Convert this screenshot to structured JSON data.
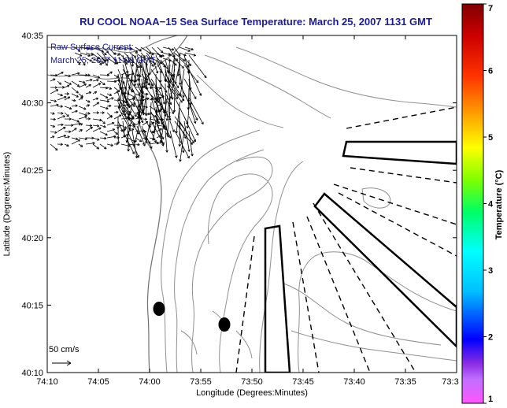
{
  "title": "RU COOL  NOAA−15  Sea Surface Temperature:  March 25, 2007 1131 GMT",
  "annotation": {
    "line1": "Raw Surface Current:",
    "line2": "March 25, 2007 11:00 GMT"
  },
  "axes": {
    "xlabel": "Longitude (Degrees:Minutes)",
    "ylabel": "Latitude (Degrees:Minutes)",
    "x_ticks": [
      "74:10",
      "74:05",
      "74:00",
      "73:55",
      "73:50",
      "73:45",
      "73:40",
      "73:35",
      "73:3"
    ],
    "y_ticks": [
      "40:35",
      "40:30",
      "40:25",
      "40:20",
      "40:15",
      "40:10"
    ]
  },
  "scale": {
    "label": "50 cm/s"
  },
  "colorbar": {
    "label": "Temperature (°C)",
    "ticks": [
      "1",
      "2",
      "3",
      "4",
      "5",
      "6",
      "7"
    ],
    "min": 1,
    "max": 7,
    "colors": [
      "#ff55ff",
      "#8a2be2",
      "#0000ff",
      "#00bfff",
      "#00ffff",
      "#00ff66",
      "#7fff00",
      "#ffff00",
      "#ffa500",
      "#ff3300",
      "#cc0000",
      "#800000"
    ]
  }
}
